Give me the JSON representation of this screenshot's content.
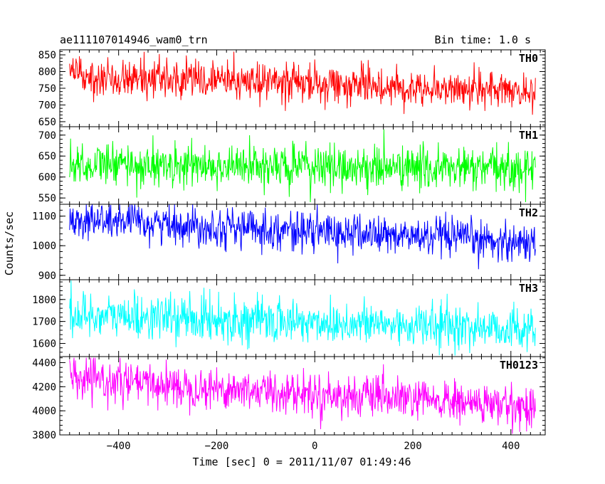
{
  "chart_data": {
    "type": "line",
    "title": "ae111107014946_wam0_trn",
    "bin_time": "Bin time: 1.0 s",
    "xlabel": "Time [sec] 0 = 2011/11/07 01:49:46",
    "ylabel": "Counts/sec",
    "xlim": [
      -520,
      470
    ],
    "x_range": [
      -500,
      450
    ],
    "xticks": [
      -400,
      -200,
      0,
      200,
      400
    ],
    "xtick_labels": [
      "−400",
      "−200",
      "0",
      "200",
      "400"
    ],
    "panels": [
      {
        "name": "TH0",
        "color": "#ff0000",
        "ylim": [
          635,
          865
        ],
        "yticks": [
          650,
          700,
          750,
          800,
          850
        ],
        "ytick_labels": [
          "650",
          "700",
          "750",
          "800",
          "850"
        ],
        "level_start": 790,
        "level_end": 740,
        "noise": 28,
        "spike_max": 870,
        "spike_min": 640
      },
      {
        "name": "TH1",
        "color": "#00ff00",
        "ylim": [
          535,
          720
        ],
        "yticks": [
          550,
          600,
          650,
          700
        ],
        "ytick_labels": [
          "550",
          "600",
          "650",
          "700"
        ],
        "level_start": 630,
        "level_end": 618,
        "noise": 26,
        "spike_max": 722,
        "spike_min": 540
      },
      {
        "name": "TH2",
        "color": "#0000ff",
        "ylim": [
          885,
          1140
        ],
        "yticks": [
          900,
          1000,
          1100
        ],
        "ytick_labels": [
          "900",
          "1000",
          "1100"
        ],
        "level_start": 1090,
        "level_end": 1010,
        "noise": 33,
        "spike_max": 1140,
        "spike_min": 895
      },
      {
        "name": "TH3",
        "color": "#00ffff",
        "ylim": [
          1540,
          1890
        ],
        "yticks": [
          1600,
          1700,
          1800
        ],
        "ytick_labels": [
          "1600",
          "1700",
          "1800"
        ],
        "level_start": 1730,
        "level_end": 1665,
        "noise": 50,
        "spike_max": 1890,
        "spike_min": 1545
      },
      {
        "name": "TH0123",
        "color": "#ff00ff",
        "ylim": [
          3800,
          4450
        ],
        "yticks": [
          3800,
          4000,
          4200,
          4400
        ],
        "ytick_labels": [
          "3800",
          "4000",
          "4200",
          "4400"
        ],
        "level_start": 4260,
        "level_end": 4030,
        "noise": 85,
        "spike_max": 4440,
        "spike_min": 3810
      }
    ]
  }
}
